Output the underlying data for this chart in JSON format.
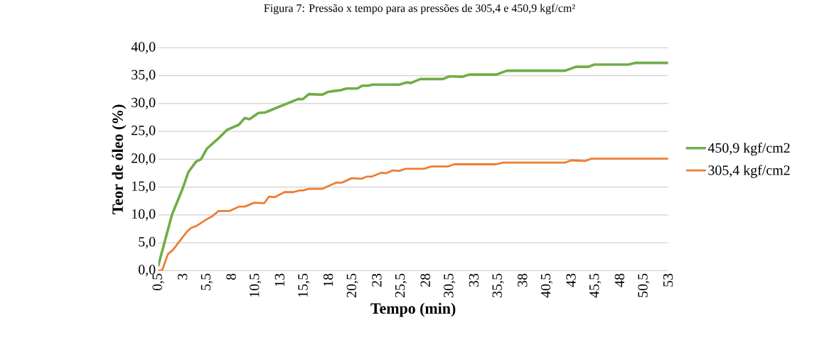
{
  "chart_data": {
    "type": "line",
    "title": "Figura 7: Pressão x tempo para as pressões de 305,4 e 450,9 kgf/cm²",
    "xlabel": "Tempo (min)",
    "ylabel": "Teor de óleo (%)",
    "xlim": [
      0.5,
      53
    ],
    "xticks": [
      {
        "value": 0.5,
        "label": "0,5"
      },
      3,
      {
        "value": 5.5,
        "label": "5,5"
      },
      8,
      {
        "value": 10.5,
        "label": "10,5"
      },
      13,
      {
        "value": 15.5,
        "label": "15,5"
      },
      18,
      {
        "value": 20.5,
        "label": "20,5"
      },
      23,
      {
        "value": 25.5,
        "label": "25,5"
      },
      28,
      {
        "value": 30.5,
        "label": "30,5"
      },
      33,
      {
        "value": 35.5,
        "label": "35,5"
      },
      38,
      {
        "value": 40.5,
        "label": "40,5"
      },
      43,
      {
        "value": 45.5,
        "label": "45,5"
      },
      48,
      {
        "value": 50.5,
        "label": "50,5"
      },
      53
    ],
    "ylim": [
      0,
      40
    ],
    "yticks": [
      {
        "value": 0,
        "label": "0,0"
      },
      {
        "value": 5,
        "label": "5,0"
      },
      {
        "value": 10,
        "label": "10,0"
      },
      {
        "value": 15,
        "label": "15,0"
      },
      {
        "value": 20,
        "label": "20,0"
      },
      {
        "value": 25,
        "label": "25,0"
      },
      {
        "value": 30,
        "label": "30,0"
      },
      {
        "value": 35,
        "label": "35,0"
      },
      {
        "value": 40,
        "label": "40,0"
      }
    ],
    "grid": "y",
    "legend": "right",
    "marker": "none",
    "line_style": "solid",
    "series": [
      {
        "name": "450,9 kgf/cm2",
        "color": "#70ad47",
        "x": [
          0.5,
          1.9,
          3.0,
          3.6,
          4.4,
          4.9,
          5.5,
          6.6,
          7.6,
          8.8,
          9.4,
          9.9,
          10.8,
          11.5,
          14.9,
          15.4,
          16.0,
          17.4,
          18.0,
          18.8,
          19.3,
          19.9,
          21.0,
          21.5,
          22.1,
          22.6,
          25.3,
          26.1,
          26.5,
          27.5,
          29.8,
          30.5,
          31.8,
          32.5,
          35.3,
          36.4,
          42.4,
          43.5,
          44.8,
          45.4,
          48.9,
          49.6,
          53
        ],
        "values": [
          0.9,
          10.0,
          14.7,
          17.7,
          19.6,
          20.0,
          21.9,
          23.6,
          25.3,
          26.2,
          27.4,
          27.2,
          28.3,
          28.4,
          30.8,
          30.8,
          31.7,
          31.6,
          32.1,
          32.3,
          32.4,
          32.7,
          32.7,
          33.2,
          33.2,
          33.4,
          33.4,
          33.8,
          33.7,
          34.4,
          34.4,
          34.9,
          34.8,
          35.2,
          35.2,
          35.9,
          35.9,
          36.6,
          36.6,
          37.0,
          37.0,
          37.3,
          37.3
        ]
      },
      {
        "name": "305,4 kgf/cm2",
        "color": "#ed7d31",
        "x": [
          0.5,
          0.9,
          1.5,
          2.0,
          3.45,
          3.9,
          4.4,
          5.65,
          6.0,
          6.7,
          7.8,
          8.8,
          9.4,
          10.4,
          11.4,
          11.9,
          12.5,
          13.5,
          14.4,
          15.05,
          15.4,
          16.0,
          17.4,
          18.8,
          19.4,
          20.4,
          21.4,
          22.0,
          22.5,
          23.5,
          24.0,
          24.6,
          25.3,
          26.0,
          27.9,
          28.6,
          30.3,
          31.0,
          35.3,
          36.0,
          42.4,
          43.0,
          44.5,
          45.1,
          53
        ],
        "values": [
          0.0,
          0.1,
          3.0,
          3.7,
          7.0,
          7.7,
          8.0,
          9.4,
          9.7,
          10.7,
          10.7,
          11.5,
          11.5,
          12.2,
          12.1,
          13.3,
          13.2,
          14.1,
          14.1,
          14.4,
          14.4,
          14.7,
          14.7,
          15.8,
          15.8,
          16.6,
          16.5,
          16.9,
          16.9,
          17.6,
          17.5,
          18.0,
          17.9,
          18.3,
          18.3,
          18.7,
          18.7,
          19.1,
          19.1,
          19.4,
          19.4,
          19.8,
          19.7,
          20.1,
          20.1
        ]
      }
    ]
  }
}
